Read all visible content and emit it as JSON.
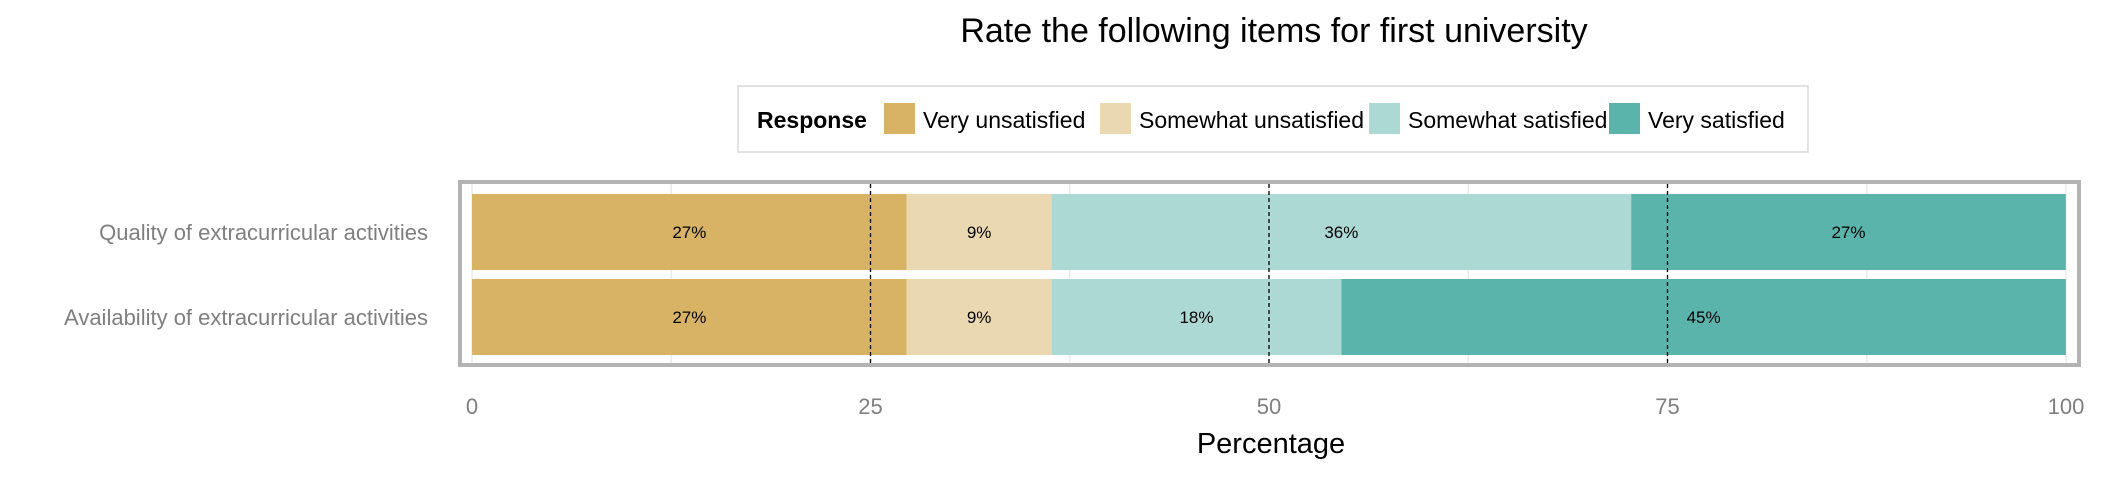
{
  "chart_data": {
    "type": "bar",
    "orientation": "horizontal",
    "stacked": true,
    "title": "Rate the following items for first university",
    "xlabel": "Percentage",
    "ylabel": "",
    "xlim": [
      0,
      100
    ],
    "xticks": [
      0,
      25,
      50,
      75,
      100
    ],
    "grid": true,
    "reference_lines": [
      25,
      50,
      75
    ],
    "legend": {
      "title": "Response",
      "position": "top-center",
      "entries": [
        "Very unsatisfied",
        "Somewhat unsatisfied",
        "Somewhat satisfied",
        "Very satisfied"
      ]
    },
    "categories": [
      "Quality of extracurricular activities",
      "Availability of extracurricular activities"
    ],
    "series": [
      {
        "name": "Very unsatisfied",
        "color": "#D8B365",
        "values": [
          27.27,
          27.27
        ],
        "labels": [
          "27%",
          "27%"
        ]
      },
      {
        "name": "Somewhat unsatisfied",
        "color": "#EAD9B0",
        "values": [
          9.09,
          9.09
        ],
        "labels": [
          "9%",
          "9%"
        ]
      },
      {
        "name": "Somewhat satisfied",
        "color": "#ADD9D5",
        "values": [
          36.36,
          18.18
        ],
        "labels": [
          "36%",
          "18%"
        ]
      },
      {
        "name": "Very satisfied",
        "color": "#5AB4AC",
        "values": [
          27.27,
          45.45
        ],
        "labels": [
          "27%",
          "45%"
        ]
      }
    ]
  }
}
